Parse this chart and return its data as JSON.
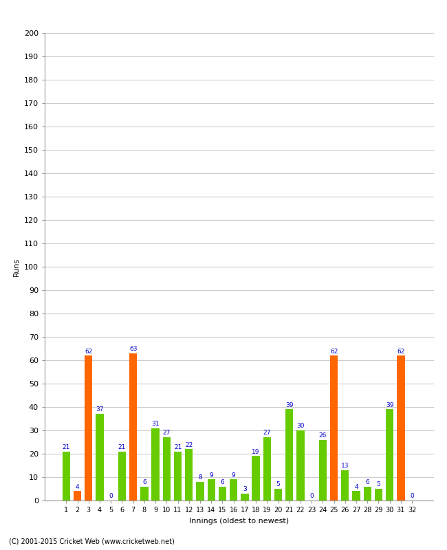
{
  "xlabel": "Innings (oldest to newest)",
  "ylabel": "Runs",
  "values": [
    21,
    4,
    62,
    37,
    0,
    21,
    63,
    6,
    31,
    27,
    21,
    22,
    8,
    9,
    6,
    9,
    3,
    19,
    27,
    5,
    39,
    30,
    0,
    26,
    62,
    13,
    4,
    6,
    5,
    39,
    62,
    0
  ],
  "labels": [
    "1",
    "2",
    "3",
    "4",
    "5",
    "6",
    "7",
    "8",
    "9",
    "10",
    "11",
    "12",
    "13",
    "14",
    "15",
    "16",
    "17",
    "18",
    "19",
    "20",
    "21",
    "22",
    "23",
    "24",
    "25",
    "26",
    "27",
    "28",
    "29",
    "30",
    "31",
    "32"
  ],
  "bar_colors": [
    "#66cc00",
    "#ff6600",
    "#ff6600",
    "#66cc00",
    "#66cc00",
    "#66cc00",
    "#ff6600",
    "#66cc00",
    "#66cc00",
    "#66cc00",
    "#66cc00",
    "#66cc00",
    "#66cc00",
    "#66cc00",
    "#66cc00",
    "#66cc00",
    "#66cc00",
    "#66cc00",
    "#66cc00",
    "#66cc00",
    "#66cc00",
    "#66cc00",
    "#66cc00",
    "#66cc00",
    "#ff6600",
    "#66cc00",
    "#66cc00",
    "#66cc00",
    "#66cc00",
    "#66cc00",
    "#ff6600",
    "#66cc00"
  ],
  "ylim": [
    0,
    200
  ],
  "yticks": [
    0,
    10,
    20,
    30,
    40,
    50,
    60,
    70,
    80,
    90,
    100,
    110,
    120,
    130,
    140,
    150,
    160,
    170,
    180,
    190,
    200
  ],
  "label_color": "#0000cc",
  "label_fontsize": 6.5,
  "axis_fontsize": 8,
  "footer": "(C) 2001-2015 Cricket Web (www.cricketweb.net)",
  "bg_color": "#ffffff",
  "grid_color": "#cccccc"
}
